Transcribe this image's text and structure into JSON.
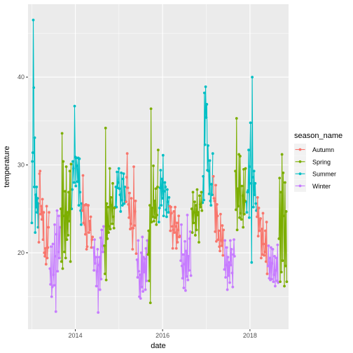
{
  "chart_data": {
    "type": "line",
    "title": "",
    "xlabel": "date",
    "ylabel": "temperature",
    "x_ticks": [
      "2014",
      "2016",
      "2018"
    ],
    "y_ticks": [
      20,
      30,
      40
    ],
    "xlim": [
      "2012-12-01",
      "2018-11-20"
    ],
    "ylim": [
      11.3,
      48.3
    ],
    "grid": true,
    "point_markers": true,
    "legend": {
      "title": "season_name",
      "position": "right",
      "entries": [
        "Autumn",
        "Spring",
        "Summer",
        "Winter"
      ]
    },
    "series": [
      {
        "name": "Summer",
        "color": "#00BFC4",
        "x": [
          "2013-01-02",
          "2013-01-06",
          "2013-01-10",
          "2013-01-14",
          "2013-01-18",
          "2013-01-22",
          "2013-01-26",
          "2013-01-30",
          "2013-02-03",
          "2013-02-07",
          "2013-02-11",
          "2013-02-15",
          "2013-02-19",
          "2013-02-23",
          "2013-02-27",
          "2013-12-01",
          "2013-12-06",
          "2013-12-11",
          "2013-12-16",
          "2013-12-21",
          "2013-12-26",
          "2013-12-31",
          "2014-01-05",
          "2014-01-10",
          "2014-01-15",
          "2014-01-20",
          "2014-01-25",
          "2014-01-30",
          "2014-02-04",
          "2014-02-09",
          "2014-02-14",
          "2014-02-19",
          "2014-02-24",
          "2014-12-01",
          "2014-12-06",
          "2014-12-11",
          "2014-12-16",
          "2014-12-21",
          "2014-12-26",
          "2014-12-31",
          "2015-01-05",
          "2015-01-10",
          "2015-01-15",
          "2015-01-20",
          "2015-01-25",
          "2015-01-30",
          "2015-02-04",
          "2015-02-09",
          "2015-02-14",
          "2015-02-19",
          "2015-02-24",
          "2015-12-01",
          "2015-12-06",
          "2015-12-11",
          "2015-12-16",
          "2015-12-21",
          "2015-12-26",
          "2015-12-31",
          "2016-01-05",
          "2016-01-10",
          "2016-01-15",
          "2016-01-20",
          "2016-01-25",
          "2016-01-30",
          "2016-02-04",
          "2016-02-09",
          "2016-02-14",
          "2016-02-19",
          "2016-02-24",
          "2016-12-01",
          "2016-12-06",
          "2016-12-11",
          "2016-12-16",
          "2016-12-21",
          "2016-12-26",
          "2016-12-31",
          "2017-01-05",
          "2017-01-10",
          "2017-01-15",
          "2017-01-20",
          "2017-01-25",
          "2017-01-30",
          "2017-02-04",
          "2017-02-09",
          "2017-02-14",
          "2017-02-19",
          "2017-02-24",
          "2017-12-01",
          "2017-12-06",
          "2017-12-11",
          "2017-12-16",
          "2017-12-21",
          "2017-12-26",
          "2017-12-31",
          "2018-01-05",
          "2018-01-10",
          "2018-01-15",
          "2018-01-20",
          "2018-01-25",
          "2018-01-30",
          "2018-02-04",
          "2018-02-09",
          "2018-02-14",
          "2018-02-19",
          "2018-02-24"
        ],
        "y": [
          23.4,
          30.4,
          31.4,
          46.5,
          38.8,
          27.5,
          33.1,
          22.3,
          26.6,
          25.2,
          27.5,
          24.6,
          26.2,
          22.9,
          25.6,
          25.0,
          27.2,
          30.4,
          29.6,
          28.0,
          36.7,
          30.9,
          27.6,
          30.8,
          29.9,
          28.1,
          30.8,
          25.4,
          30.7,
          26.9,
          24.8,
          23.2,
          25.6,
          25.2,
          27.5,
          25.2,
          29.2,
          27.4,
          28.0,
          29.6,
          27.3,
          26.6,
          24.7,
          29.1,
          26.0,
          25.4,
          28.4,
          29.0,
          25.6,
          27.5,
          25.9,
          23.5,
          25.1,
          27.4,
          29.4,
          25.4,
          28.4,
          26.2,
          31.1,
          24.2,
          27.0,
          28.0,
          27.5,
          24.9,
          24.1,
          27.2,
          25.8,
          24.6,
          26.3,
          25.7,
          28.7,
          26.0,
          38.2,
          32.3,
          38.9,
          35.4,
          36.9,
          29.4,
          32.2,
          29.3,
          26.7,
          30.5,
          25.9,
          25.4,
          27.8,
          26.6,
          31.3,
          25.8,
          24.6,
          26.9,
          27.1,
          31.7,
          24.0,
          29.8,
          34.8,
          27.9,
          18.9,
          40.0,
          28.6,
          25.2,
          29.3,
          26.6,
          27.9,
          25.6,
          24.8
        ]
      },
      {
        "name": "Autumn",
        "color": "#F8766D",
        "x": [
          "2013-03-02",
          "2013-03-07",
          "2013-03-12",
          "2013-03-17",
          "2013-03-22",
          "2013-03-27",
          "2013-04-01",
          "2013-04-06",
          "2013-04-11",
          "2013-04-16",
          "2013-04-21",
          "2013-04-26",
          "2013-05-01",
          "2013-05-06",
          "2013-05-11",
          "2013-05-16",
          "2013-05-21",
          "2013-05-26",
          "2014-03-01",
          "2014-03-06",
          "2014-03-11",
          "2014-03-16",
          "2014-03-21",
          "2014-03-26",
          "2014-03-31",
          "2014-04-05",
          "2014-04-10",
          "2014-04-15",
          "2014-04-20",
          "2014-04-25",
          "2014-04-30",
          "2014-05-05",
          "2014-05-10",
          "2014-05-15",
          "2014-05-20",
          "2014-05-25",
          "2015-03-01",
          "2015-03-06",
          "2015-03-11",
          "2015-03-16",
          "2015-03-21",
          "2015-03-26",
          "2015-03-31",
          "2015-04-05",
          "2015-04-10",
          "2015-04-15",
          "2015-04-20",
          "2015-04-25",
          "2015-04-30",
          "2015-05-05",
          "2015-05-10",
          "2015-05-15",
          "2015-05-20",
          "2015-05-25",
          "2016-03-01",
          "2016-03-06",
          "2016-03-11",
          "2016-03-16",
          "2016-03-21",
          "2016-03-26",
          "2016-03-31",
          "2016-04-05",
          "2016-04-10",
          "2016-04-15",
          "2016-04-20",
          "2016-04-25",
          "2016-04-30",
          "2016-05-05",
          "2016-05-10",
          "2016-05-15",
          "2016-05-20",
          "2016-05-25",
          "2017-03-01",
          "2017-03-06",
          "2017-03-11",
          "2017-03-16",
          "2017-03-21",
          "2017-03-26",
          "2017-03-31",
          "2017-04-05",
          "2017-04-10",
          "2017-04-15",
          "2017-04-20",
          "2017-04-25",
          "2017-04-30",
          "2017-05-05",
          "2017-05-10",
          "2017-05-15",
          "2017-05-20",
          "2017-05-25",
          "2018-03-01",
          "2018-03-06",
          "2018-03-11",
          "2018-03-16",
          "2018-03-21",
          "2018-03-26",
          "2018-03-31",
          "2018-04-05",
          "2018-04-10",
          "2018-04-15",
          "2018-04-20",
          "2018-04-25",
          "2018-04-30",
          "2018-05-05",
          "2018-05-10",
          "2018-05-15",
          "2018-05-20",
          "2018-05-25"
        ],
        "y": [
          21.2,
          29.0,
          29.3,
          24.4,
          25.3,
          23.8,
          26.1,
          21.5,
          24.6,
          20.0,
          19.6,
          20.5,
          18.7,
          25.3,
          19.4,
          20.6,
          22.9,
          24.6,
          24.8,
          28.8,
          23.4,
          25.4,
          23.2,
          22.1,
          25.5,
          20.4,
          20.7,
          25.4,
          25.4,
          22.3,
          23.6,
          22.6,
          24.1,
          20.6,
          21.5,
          21.8,
          25.8,
          28.6,
          31.3,
          27.4,
          25.5,
          24.0,
          26.8,
          22.7,
          23.3,
          26.2,
          22.8,
          20.4,
          22.8,
          29.8,
          23.1,
          24.7,
          25.9,
          19.9,
          25.3,
          22.5,
          25.2,
          24.5,
          23.0,
          20.5,
          22.6,
          24.7,
          22.3,
          25.2,
          23.0,
          20.5,
          23.4,
          21.2,
          22.6,
          24.2,
          21.8,
          21.9,
          28.7,
          26.2,
          25.9,
          22.4,
          27.7,
          21.3,
          25.5,
          24.2,
          21.5,
          22.5,
          20.7,
          20.2,
          24.4,
          21.4,
          20.8,
          23.1,
          19.7,
          22.6,
          24.1,
          26.3,
          21.9,
          25.1,
          22.5,
          23.7,
          23.9,
          19.4,
          22.7,
          19.8,
          24.5,
          21.0,
          19.7,
          20.1,
          22.5,
          19.0,
          23.5,
          17.6
        ]
      },
      {
        "name": "Winter",
        "color": "#C77CFF",
        "x": [
          "2013-06-02",
          "2013-06-07",
          "2013-06-12",
          "2013-06-17",
          "2013-06-22",
          "2013-06-27",
          "2013-07-02",
          "2013-07-07",
          "2013-07-12",
          "2013-07-17",
          "2013-07-22",
          "2013-07-27",
          "2013-08-01",
          "2013-08-06",
          "2013-08-11",
          "2013-08-16",
          "2013-08-21",
          "2013-08-26",
          "2014-06-01",
          "2014-06-06",
          "2014-06-11",
          "2014-06-16",
          "2014-06-21",
          "2014-06-26",
          "2014-07-01",
          "2014-07-06",
          "2014-07-11",
          "2014-07-16",
          "2014-07-21",
          "2014-07-26",
          "2014-07-31",
          "2014-08-05",
          "2014-08-10",
          "2014-08-15",
          "2014-08-20",
          "2014-08-25",
          "2015-06-01",
          "2015-06-06",
          "2015-06-11",
          "2015-06-16",
          "2015-06-21",
          "2015-06-26",
          "2015-07-01",
          "2015-07-06",
          "2015-07-11",
          "2015-07-16",
          "2015-07-21",
          "2015-07-26",
          "2015-07-31",
          "2015-08-05",
          "2015-08-10",
          "2015-08-15",
          "2015-08-20",
          "2015-08-25",
          "2016-06-01",
          "2016-06-06",
          "2016-06-11",
          "2016-06-16",
          "2016-06-21",
          "2016-06-26",
          "2016-07-01",
          "2016-07-06",
          "2016-07-11",
          "2016-07-16",
          "2016-07-21",
          "2016-07-26",
          "2016-07-31",
          "2016-08-05",
          "2016-08-10",
          "2016-08-15",
          "2016-08-20",
          "2016-08-25",
          "2017-06-01",
          "2017-06-06",
          "2017-06-11",
          "2017-06-16",
          "2017-06-21",
          "2017-06-26",
          "2017-07-01",
          "2017-07-06",
          "2017-07-11",
          "2017-07-16",
          "2017-07-21",
          "2017-07-26",
          "2017-07-31",
          "2017-08-05",
          "2017-08-10",
          "2017-08-15",
          "2017-08-20",
          "2017-08-25",
          "2018-06-01",
          "2018-06-06",
          "2018-06-11",
          "2018-06-16",
          "2018-06-21",
          "2018-06-26",
          "2018-07-01",
          "2018-07-06",
          "2018-07-11",
          "2018-07-16",
          "2018-07-21",
          "2018-07-26",
          "2018-07-31",
          "2018-08-05",
          "2018-08-10",
          "2018-08-15",
          "2018-08-20",
          "2018-08-25"
        ],
        "y": [
          18.2,
          16.4,
          20.7,
          15.0,
          16.1,
          21.0,
          17.5,
          16.3,
          23.2,
          19.6,
          13.3,
          22.1,
          24.8,
          17.9,
          20.1,
          24.2,
          19.4,
          22.9,
          20.6,
          18.0,
          21.5,
          18.8,
          19.5,
          16.2,
          17.9,
          20.4,
          13.2,
          18.6,
          19.5,
          15.8,
          21.7,
          17.0,
          22.6,
          20.8,
          20.1,
          23.0,
          19.2,
          17.2,
          21.4,
          17.9,
          15.0,
          17.5,
          14.8,
          20.0,
          16.1,
          21.8,
          15.6,
          19.5,
          17.8,
          19.3,
          15.8,
          20.5,
          16.8,
          21.4,
          19.1,
          23.2,
          18.5,
          17.1,
          19.8,
          16.0,
          18.7,
          21.3,
          15.7,
          20.2,
          17.3,
          24.3,
          16.9,
          19.6,
          18.0,
          21.6,
          22.4,
          17.4,
          18.1,
          21.4,
          17.2,
          18.6,
          20.6,
          15.8,
          19.5,
          17.4,
          18.9,
          16.6,
          21.4,
          18.6,
          20.4,
          17.7,
          16.1,
          19.8,
          21.5,
          19.6,
          18.5,
          20.8,
          17.1,
          19.4,
          16.9,
          20.6,
          17.0,
          18.8,
          20.4,
          16.7,
          17.5,
          19.6,
          16.2,
          18.0,
          19.4,
          16.8,
          20.9,
          16.6
        ]
      },
      {
        "name": "Spring",
        "color": "#7CAE00",
        "x": [
          "2013-09-02",
          "2013-09-07",
          "2013-09-12",
          "2013-09-17",
          "2013-09-22",
          "2013-09-27",
          "2013-10-02",
          "2013-10-07",
          "2013-10-12",
          "2013-10-17",
          "2013-10-22",
          "2013-10-27",
          "2013-11-01",
          "2013-11-06",
          "2013-11-11",
          "2013-11-16",
          "2013-11-21",
          "2013-11-26",
          "2014-09-01",
          "2014-09-06",
          "2014-09-11",
          "2014-09-16",
          "2014-09-21",
          "2014-09-26",
          "2014-10-01",
          "2014-10-06",
          "2014-10-11",
          "2014-10-16",
          "2014-10-21",
          "2014-10-26",
          "2014-10-31",
          "2014-11-05",
          "2014-11-10",
          "2014-11-15",
          "2014-11-20",
          "2014-11-25",
          "2015-09-01",
          "2015-09-06",
          "2015-09-11",
          "2015-09-16",
          "2015-09-21",
          "2015-09-26",
          "2015-10-01",
          "2015-10-06",
          "2015-10-11",
          "2015-10-16",
          "2015-10-21",
          "2015-10-26",
          "2015-10-31",
          "2015-11-05",
          "2015-11-10",
          "2015-11-15",
          "2015-11-20",
          "2015-11-25",
          "2016-09-01",
          "2016-09-06",
          "2016-09-11",
          "2016-09-16",
          "2016-09-21",
          "2016-09-26",
          "2016-10-01",
          "2016-10-06",
          "2016-10-11",
          "2016-10-16",
          "2016-10-21",
          "2016-10-26",
          "2016-10-31",
          "2016-11-05",
          "2016-11-10",
          "2016-11-15",
          "2016-11-20",
          "2016-11-25",
          "2017-09-01",
          "2017-09-06",
          "2017-09-11",
          "2017-09-16",
          "2017-09-21",
          "2017-09-26",
          "2017-10-01",
          "2017-10-06",
          "2017-10-11",
          "2017-10-16",
          "2017-10-21",
          "2017-10-26",
          "2017-10-31",
          "2017-11-05",
          "2017-11-10",
          "2017-11-15",
          "2017-11-20",
          "2017-11-25",
          "2018-09-01",
          "2018-09-06",
          "2018-09-11",
          "2018-09-16",
          "2018-09-21",
          "2018-09-26",
          "2018-10-01",
          "2018-10-06",
          "2018-10-11",
          "2018-10-16",
          "2018-10-21",
          "2018-10-26",
          "2018-10-31",
          "2018-11-05"
        ],
        "y": [
          25.0,
          19.0,
          33.6,
          18.2,
          30.4,
          24.2,
          20.1,
          27.0,
          19.4,
          29.8,
          21.5,
          24.6,
          22.0,
          26.9,
          23.6,
          29.3,
          19.0,
          30.1,
          20.8,
          17.6,
          34.2,
          16.9,
          25.6,
          21.6,
          25.2,
          22.3,
          23.0,
          29.6,
          22.7,
          26.3,
          25.4,
          23.3,
          27.9,
          24.1,
          22.8,
          25.1,
          19.8,
          22.5,
          16.8,
          25.4,
          14.3,
          36.4,
          23.5,
          25.1,
          24.1,
          29.9,
          23.6,
          25.9,
          24.0,
          27.3,
          23.2,
          24.3,
          27.5,
          31.7,
          25.0,
          22.3,
          26.9,
          23.4,
          24.6,
          25.8,
          22.0,
          25.4,
          22.6,
          27.2,
          24.3,
          24.6,
          21.2,
          26.5,
          25.5,
          25.2,
          26.9,
          24.8,
          29.3,
          24.9,
          35.3,
          22.6,
          27.3,
          25.3,
          31.2,
          24.0,
          31.0,
          24.5,
          23.8,
          27.6,
          26.5,
          22.9,
          29.5,
          24.4,
          25.9,
          29.6,
          21.6,
          28.5,
          16.7,
          26.9,
          17.8,
          31.2,
          19.1,
          29.1,
          24.2,
          16.2,
          28.0,
          18.5,
          24.7,
          16.7
        ]
      }
    ]
  }
}
